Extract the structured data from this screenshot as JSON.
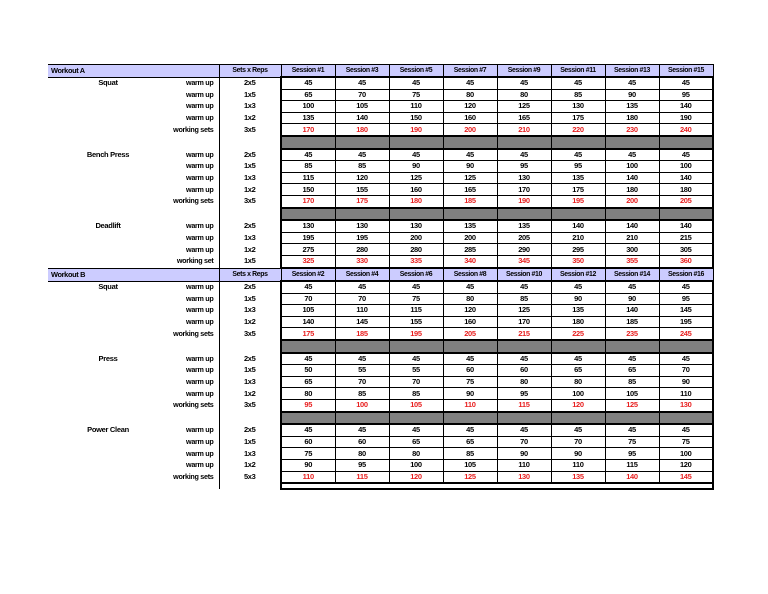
{
  "colors": {
    "header_bg": "#ccccff",
    "separator_bg": "#808080",
    "working_weight": "#e82020",
    "text": "#000000",
    "page_bg": "#ffffff"
  },
  "sets_reps_header": "Sets x Reps",
  "workouts": [
    {
      "title": "Workout A",
      "sessions": [
        "Session #1",
        "Session #3",
        "Session #5",
        "Session #7",
        "Session #9",
        "Session #11",
        "Session #13",
        "Session #15"
      ],
      "exercises": [
        {
          "name": "Squat",
          "rows": [
            {
              "label": "warm up",
              "sets_reps": "2x5",
              "working": false,
              "values": [
                45,
                45,
                45,
                45,
                45,
                45,
                45,
                45
              ]
            },
            {
              "label": "warm up",
              "sets_reps": "1x5",
              "working": false,
              "values": [
                65,
                70,
                75,
                80,
                80,
                85,
                90,
                95
              ]
            },
            {
              "label": "warm up",
              "sets_reps": "1x3",
              "working": false,
              "values": [
                100,
                105,
                110,
                120,
                125,
                130,
                135,
                140
              ]
            },
            {
              "label": "warm up",
              "sets_reps": "1x2",
              "working": false,
              "values": [
                135,
                140,
                150,
                160,
                165,
                175,
                180,
                190
              ]
            },
            {
              "label": "working sets",
              "sets_reps": "3x5",
              "working": true,
              "values": [
                170,
                180,
                190,
                200,
                210,
                220,
                230,
                240
              ]
            }
          ]
        },
        {
          "name": "Bench Press",
          "rows": [
            {
              "label": "warm up",
              "sets_reps": "2x5",
              "working": false,
              "values": [
                45,
                45,
                45,
                45,
                45,
                45,
                45,
                45
              ]
            },
            {
              "label": "warm up",
              "sets_reps": "1x5",
              "working": false,
              "values": [
                85,
                85,
                90,
                90,
                95,
                95,
                100,
                100
              ]
            },
            {
              "label": "warm up",
              "sets_reps": "1x3",
              "working": false,
              "values": [
                115,
                120,
                125,
                125,
                130,
                135,
                140,
                140
              ]
            },
            {
              "label": "warm up",
              "sets_reps": "1x2",
              "working": false,
              "values": [
                150,
                155,
                160,
                165,
                170,
                175,
                180,
                180
              ]
            },
            {
              "label": "working sets",
              "sets_reps": "3x5",
              "working": true,
              "values": [
                170,
                175,
                180,
                185,
                190,
                195,
                200,
                205
              ]
            }
          ]
        },
        {
          "name": "Deadlift",
          "rows": [
            {
              "label": "warm up",
              "sets_reps": "2x5",
              "working": false,
              "values": [
                130,
                130,
                130,
                135,
                135,
                140,
                140,
                140
              ]
            },
            {
              "label": "warm up",
              "sets_reps": "1x3",
              "working": false,
              "values": [
                195,
                195,
                200,
                200,
                205,
                210,
                210,
                215
              ]
            },
            {
              "label": "warm up",
              "sets_reps": "1x2",
              "working": false,
              "values": [
                275,
                280,
                280,
                285,
                290,
                295,
                300,
                305
              ]
            },
            {
              "label": "working set",
              "sets_reps": "1x5",
              "working": true,
              "values": [
                325,
                330,
                335,
                340,
                345,
                350,
                355,
                360
              ]
            }
          ]
        }
      ]
    },
    {
      "title": "Workout B",
      "sessions": [
        "Session #2",
        "Session #4",
        "Session #6",
        "Session #8",
        "Session #10",
        "Session #12",
        "Session #14",
        "Session #16"
      ],
      "exercises": [
        {
          "name": "Squat",
          "rows": [
            {
              "label": "warm up",
              "sets_reps": "2x5",
              "working": false,
              "values": [
                45,
                45,
                45,
                45,
                45,
                45,
                45,
                45
              ]
            },
            {
              "label": "warm up",
              "sets_reps": "1x5",
              "working": false,
              "values": [
                70,
                70,
                75,
                80,
                85,
                90,
                90,
                95
              ]
            },
            {
              "label": "warm up",
              "sets_reps": "1x3",
              "working": false,
              "values": [
                105,
                110,
                115,
                120,
                125,
                135,
                140,
                145
              ]
            },
            {
              "label": "warm up",
              "sets_reps": "1x2",
              "working": false,
              "values": [
                140,
                145,
                155,
                160,
                170,
                180,
                185,
                195
              ]
            },
            {
              "label": "working sets",
              "sets_reps": "3x5",
              "working": true,
              "values": [
                175,
                185,
                195,
                205,
                215,
                225,
                235,
                245
              ]
            }
          ]
        },
        {
          "name": "Press",
          "rows": [
            {
              "label": "warm up",
              "sets_reps": "2x5",
              "working": false,
              "values": [
                45,
                45,
                45,
                45,
                45,
                45,
                45,
                45
              ]
            },
            {
              "label": "warm up",
              "sets_reps": "1x5",
              "working": false,
              "values": [
                50,
                55,
                55,
                60,
                60,
                65,
                65,
                70
              ]
            },
            {
              "label": "warm up",
              "sets_reps": "1x3",
              "working": false,
              "values": [
                65,
                70,
                70,
                75,
                80,
                80,
                85,
                90
              ]
            },
            {
              "label": "warm up",
              "sets_reps": "1x2",
              "working": false,
              "values": [
                80,
                85,
                85,
                90,
                95,
                100,
                105,
                110
              ]
            },
            {
              "label": "working sets",
              "sets_reps": "3x5",
              "working": true,
              "values": [
                95,
                100,
                105,
                110,
                115,
                120,
                125,
                130
              ]
            }
          ]
        },
        {
          "name": "Power Clean",
          "rows": [
            {
              "label": "warm up",
              "sets_reps": "2x5",
              "working": false,
              "values": [
                45,
                45,
                45,
                45,
                45,
                45,
                45,
                45
              ]
            },
            {
              "label": "warm up",
              "sets_reps": "1x5",
              "working": false,
              "values": [
                60,
                60,
                65,
                65,
                70,
                70,
                75,
                75
              ]
            },
            {
              "label": "warm up",
              "sets_reps": "1x3",
              "working": false,
              "values": [
                75,
                80,
                80,
                85,
                90,
                90,
                95,
                100
              ]
            },
            {
              "label": "warm up",
              "sets_reps": "1x2",
              "working": false,
              "values": [
                90,
                95,
                100,
                105,
                110,
                110,
                115,
                120
              ]
            },
            {
              "label": "working sets",
              "sets_reps": "5x3",
              "working": true,
              "values": [
                110,
                115,
                120,
                125,
                130,
                135,
                140,
                145
              ]
            }
          ]
        }
      ]
    }
  ]
}
